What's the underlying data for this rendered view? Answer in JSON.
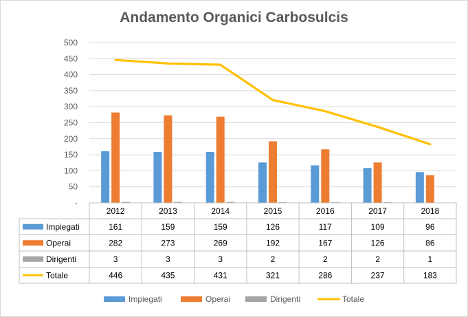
{
  "chart_data": {
    "type": "bar",
    "title": "Andamento Organici Carbosulcis",
    "categories": [
      "2012",
      "2013",
      "2014",
      "2015",
      "2016",
      "2017",
      "2018"
    ],
    "series": [
      {
        "name": "Impiegati",
        "kind": "bar",
        "color": "#5b9bd5",
        "values": [
          161,
          159,
          159,
          126,
          117,
          109,
          96
        ]
      },
      {
        "name": "Operai",
        "kind": "bar",
        "color": "#ed7d31",
        "values": [
          282,
          273,
          269,
          192,
          167,
          126,
          86
        ]
      },
      {
        "name": "Dirigenti",
        "kind": "bar",
        "color": "#a5a5a5",
        "values": [
          3,
          3,
          3,
          2,
          2,
          2,
          1
        ]
      },
      {
        "name": "Totale",
        "kind": "line",
        "color": "#ffc000",
        "values": [
          446,
          435,
          431,
          321,
          286,
          237,
          183
        ]
      }
    ],
    "yticks": [
      "-",
      "50",
      "100",
      "150",
      "200",
      "250",
      "300",
      "350",
      "400",
      "450",
      "500"
    ],
    "ylim": [
      0,
      500
    ],
    "grid": true,
    "data_table": true,
    "legend_position": "bottom"
  }
}
